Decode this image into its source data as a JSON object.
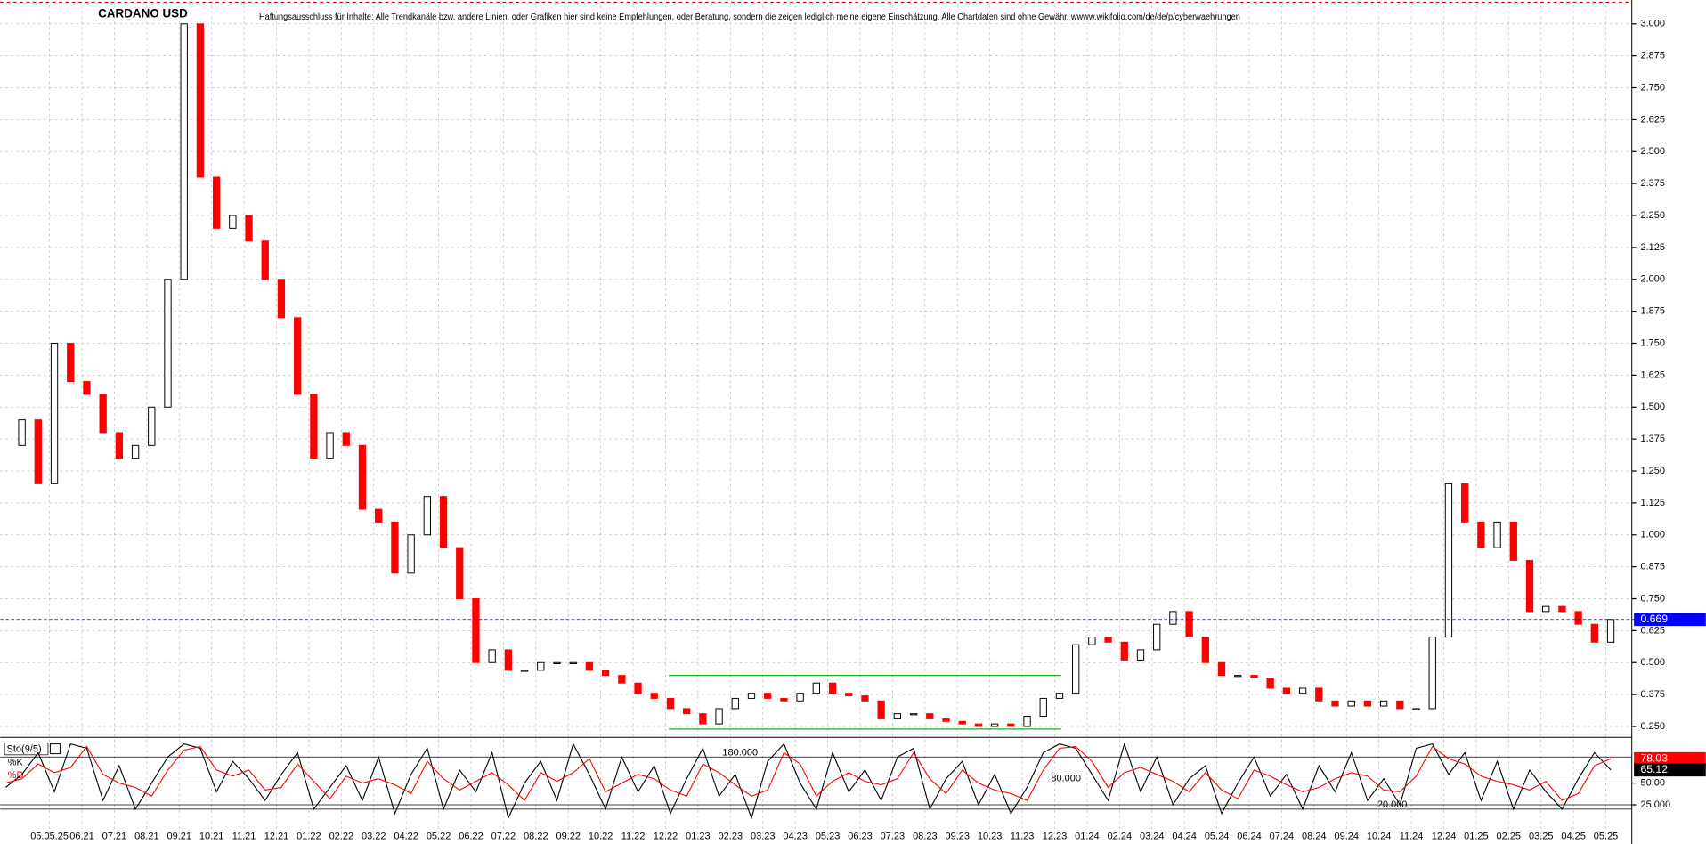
{
  "chart_data": [
    {
      "type": "candlestick",
      "title": "CARDANO USD",
      "subtitle": "Haftungsausschluss für Inhalte: Alle Trendkanäle bzw. andere Linien, oder Grafiken hier sind keine Empfehlungen, oder Beratung, sondern die zeigen lediglich meine eigene Einschätzung. Alle Chartdaten sind ohne Gewähr. wwww.wikifolio.com/de/de/p/cyberwaehrungen",
      "x": [
        -1.35,
        -0.85,
        -0.35,
        0.15,
        0.65,
        1.15,
        1.65,
        2.15,
        2.65,
        3.15,
        3.65,
        4.15,
        4.65,
        5.15,
        5.65,
        6.15,
        6.65,
        7.15,
        7.65,
        8.15,
        8.65,
        9.15,
        9.65,
        10.15,
        10.65,
        11.15,
        11.65,
        12.15,
        12.65,
        13.15,
        13.65,
        14.15,
        14.65,
        15.15,
        15.65,
        16.15,
        16.65,
        17.15,
        17.65,
        18.15,
        18.65,
        19.15,
        19.65,
        20.15,
        20.65,
        21.15,
        21.65,
        22.15,
        22.65,
        23.15,
        23.65,
        24.15,
        24.65,
        25.15,
        25.65,
        26.15,
        26.65,
        27.15,
        27.65,
        28.15,
        28.65,
        29.15,
        29.65,
        30.15,
        30.65,
        31.15,
        31.65,
        32.15,
        32.65,
        33.15,
        33.65,
        34.15,
        34.65,
        35.15,
        35.65,
        36.15,
        36.65,
        37.15,
        37.65,
        38.15,
        38.65,
        39.15,
        39.65,
        40.15,
        40.65,
        41.15,
        41.65,
        42.15,
        42.65,
        43.15,
        43.65,
        44.15,
        44.65,
        45.15,
        45.65,
        46.15,
        46.65,
        47.15,
        47.65,
        48.15
      ],
      "series": [
        {
          "up_color": "#000000",
          "color": "#ff0000",
          "values": [
            1.35,
            1.45,
            1.2,
            1.75,
            1.6,
            1.55,
            1.4,
            1.3,
            1.35,
            1.5,
            2.0,
            3.0,
            2.4,
            2.2,
            2.25,
            2.15,
            2.0,
            1.85,
            1.55,
            1.3,
            1.4,
            1.35,
            1.1,
            1.05,
            0.85,
            1.0,
            1.15,
            0.95,
            0.75,
            0.5,
            0.55,
            0.47,
            0.47,
            0.5,
            0.5,
            0.5,
            0.47,
            0.45,
            0.42,
            0.38,
            0.36,
            0.32,
            0.3,
            0.26,
            0.32,
            0.36,
            0.38,
            0.36,
            0.35,
            0.38,
            0.42,
            0.38,
            0.37,
            0.35,
            0.28,
            0.3,
            0.3,
            0.28,
            0.27,
            0.26,
            0.25,
            0.26,
            0.25,
            0.29,
            0.36,
            0.38,
            0.57,
            0.6,
            0.58,
            0.51,
            0.55,
            0.65,
            0.7,
            0.6,
            0.5,
            0.45,
            0.45,
            0.44,
            0.4,
            0.38,
            0.4,
            0.35,
            0.33,
            0.35,
            0.33,
            0.35,
            0.32,
            0.32,
            0.6,
            1.2,
            1.05,
            0.95,
            1.05,
            0.9,
            0.7,
            0.72,
            0.7,
            0.65,
            0.58,
            0.669
          ]
        }
      ],
      "trendlines": [
        {
          "x": [
            19.1,
            31.2
          ],
          "y": [
            0.45,
            0.45
          ]
        },
        {
          "x": [
            19.1,
            31.2
          ],
          "y": [
            0.24,
            0.24
          ]
        }
      ],
      "trend_color": "#22aa22",
      "xlim": [
        -1.52,
        48.8
      ],
      "ylim": [
        0.22,
        3.072
      ],
      "xticks": [
        {
          "value": 0,
          "label": "05.05.25"
        },
        {
          "value": 1,
          "label": "06.21"
        },
        {
          "value": 2,
          "label": "07.21"
        },
        {
          "value": 3,
          "label": "08.21"
        },
        {
          "value": 4,
          "label": "09.21"
        },
        {
          "value": 5,
          "label": "10.21"
        },
        {
          "value": 6,
          "label": "11.21"
        },
        {
          "value": 7,
          "label": "12.21"
        },
        {
          "value": 8,
          "label": "01.22"
        },
        {
          "value": 9,
          "label": "02.22"
        },
        {
          "value": 10,
          "label": "03.22"
        },
        {
          "value": 11,
          "label": "04.22"
        },
        {
          "value": 12,
          "label": "05.22"
        },
        {
          "value": 13,
          "label": "06.22"
        },
        {
          "value": 14,
          "label": "07.22"
        },
        {
          "value": 15,
          "label": "08.22"
        },
        {
          "value": 16,
          "label": "09.22"
        },
        {
          "value": 17,
          "label": "10.22"
        },
        {
          "value": 18,
          "label": "11.22"
        },
        {
          "value": 19,
          "label": "12.22"
        },
        {
          "value": 20,
          "label": "01.23"
        },
        {
          "value": 21,
          "label": "02.23"
        },
        {
          "value": 22,
          "label": "03.23"
        },
        {
          "value": 23,
          "label": "04.23"
        },
        {
          "value": 24,
          "label": "05.23"
        },
        {
          "value": 25,
          "label": "06.23"
        },
        {
          "value": 26,
          "label": "07.23"
        },
        {
          "value": 27,
          "label": "08.23"
        },
        {
          "value": 28,
          "label": "09.23"
        },
        {
          "value": 29,
          "label": "10.23"
        },
        {
          "value": 30,
          "label": "11.23"
        },
        {
          "value": 31,
          "label": "12.23"
        },
        {
          "value": 32,
          "label": "01.24"
        },
        {
          "value": 33,
          "label": "02.24"
        },
        {
          "value": 34,
          "label": "03.24"
        },
        {
          "value": 35,
          "label": "04.24"
        },
        {
          "value": 36,
          "label": "05.24"
        },
        {
          "value": 37,
          "label": "06.24"
        },
        {
          "value": 38,
          "label": "07.24"
        },
        {
          "value": 39,
          "label": "08.24"
        },
        {
          "value": 40,
          "label": "09.24"
        },
        {
          "value": 41,
          "label": "10.24"
        },
        {
          "value": 42,
          "label": "11.24"
        },
        {
          "value": 43,
          "label": "12.24"
        },
        {
          "value": 44,
          "label": "01.25"
        },
        {
          "value": 45,
          "label": "02.25"
        },
        {
          "value": 46,
          "label": "03.25"
        },
        {
          "value": 47,
          "label": "04.25"
        },
        {
          "value": 48,
          "label": "05.25"
        }
      ],
      "yticks": [
        {
          "value": 0.25,
          "label": "0.250"
        },
        {
          "value": 0.375,
          "label": "0.375"
        },
        {
          "value": 0.5,
          "label": "0.500"
        },
        {
          "value": 0.625,
          "label": "0.625"
        },
        {
          "value": 0.75,
          "label": "0.750"
        },
        {
          "value": 0.875,
          "label": "0.875"
        },
        {
          "value": 1.0,
          "label": "1.000"
        },
        {
          "value": 1.125,
          "label": "1.125"
        },
        {
          "value": 1.25,
          "label": "1.250"
        },
        {
          "value": 1.375,
          "label": "1.375"
        },
        {
          "value": 1.5,
          "label": "1.500"
        },
        {
          "value": 1.625,
          "label": "1.625"
        },
        {
          "value": 1.75,
          "label": "1.750"
        },
        {
          "value": 1.875,
          "label": "1.875"
        },
        {
          "value": 2.0,
          "label": "2.000"
        },
        {
          "value": 2.125,
          "label": "2.125"
        },
        {
          "value": 2.25,
          "label": "2.250"
        },
        {
          "value": 2.375,
          "label": "2.375"
        },
        {
          "value": 2.5,
          "label": "2.500"
        },
        {
          "value": 2.625,
          "label": "2.625"
        },
        {
          "value": 2.75,
          "label": "2.750"
        },
        {
          "value": 2.875,
          "label": "2.875"
        },
        {
          "value": 3.0,
          "label": "3.000"
        }
      ],
      "grid": true
    },
    {
      "type": "line",
      "title": "Sto(9/5)",
      "x": [
        -1.35,
        -0.85,
        -0.35,
        0.15,
        0.65,
        1.15,
        1.65,
        2.15,
        2.65,
        3.15,
        3.65,
        4.15,
        4.65,
        5.15,
        5.65,
        6.15,
        6.65,
        7.15,
        7.65,
        8.15,
        8.65,
        9.15,
        9.65,
        10.15,
        10.65,
        11.15,
        11.65,
        12.15,
        12.65,
        13.15,
        13.65,
        14.15,
        14.65,
        15.15,
        15.65,
        16.15,
        16.65,
        17.15,
        17.65,
        18.15,
        18.65,
        19.15,
        19.65,
        20.15,
        20.65,
        21.15,
        21.65,
        22.15,
        22.65,
        23.15,
        23.65,
        24.15,
        24.65,
        25.15,
        25.65,
        26.15,
        26.65,
        27.15,
        27.65,
        28.15,
        28.65,
        29.15,
        29.65,
        30.15,
        30.65,
        31.15,
        31.65,
        32.15,
        32.65,
        33.15,
        33.65,
        34.15,
        34.65,
        35.15,
        35.65,
        36.15,
        36.65,
        37.15,
        37.65,
        38.15,
        38.65,
        39.15,
        39.65,
        40.15,
        40.65,
        41.15,
        41.65,
        42.15,
        42.65,
        43.15,
        43.65,
        44.15,
        44.65,
        45.15,
        45.65,
        46.15,
        46.65,
        47.15,
        47.65,
        48.15
      ],
      "series": [
        {
          "name": "%K",
          "color": "#000000",
          "values": [
            45,
            60,
            85,
            40,
            95,
            90,
            30,
            70,
            20,
            50,
            80,
            95,
            90,
            40,
            75,
            55,
            30,
            60,
            85,
            20,
            45,
            70,
            30,
            80,
            15,
            60,
            90,
            20,
            65,
            40,
            85,
            10,
            50,
            75,
            30,
            95,
            60,
            20,
            80,
            40,
            70,
            15,
            55,
            90,
            35,
            60,
            10,
            75,
            95,
            50,
            20,
            85,
            40,
            65,
            30,
            80,
            90,
            20,
            55,
            75,
            25,
            60,
            15,
            45,
            85,
            95,
            90,
            60,
            30,
            95,
            40,
            80,
            25,
            55,
            70,
            15,
            50,
            80,
            35,
            60,
            20,
            70,
            40,
            85,
            30,
            55,
            25,
            90,
            95,
            60,
            85,
            30,
            75,
            20,
            65,
            40,
            20,
            55,
            85,
            65.12
          ]
        },
        {
          "name": "%D",
          "color": "#ff0000",
          "values": [
            50,
            55,
            72,
            62,
            68,
            92,
            60,
            50,
            45,
            35,
            65,
            88,
            92,
            65,
            58,
            65,
            42,
            45,
            72,
            52,
            32,
            58,
            50,
            55,
            48,
            38,
            75,
            55,
            42,
            52,
            62,
            48,
            30,
            62,
            52,
            62,
            78,
            40,
            50,
            60,
            55,
            42,
            35,
            72,
            62,
            48,
            35,
            42,
            85,
            72,
            35,
            52,
            62,
            52,
            48,
            55,
            85,
            55,
            38,
            65,
            50,
            42,
            38,
            30,
            65,
            90,
            92,
            75,
            45,
            62,
            68,
            60,
            52,
            40,
            62,
            42,
            32,
            65,
            58,
            48,
            40,
            45,
            55,
            62,
            58,
            42,
            40,
            58,
            92,
            78,
            72,
            58,
            52,
            48,
            42,
            52,
            30,
            38,
            70,
            78.03
          ]
        }
      ],
      "levels": [
        80,
        20
      ],
      "annotations": [
        "180.000",
        "80.000",
        "20.000"
      ],
      "xlim": [
        -1.52,
        48.8
      ],
      "ylim": [
        -15,
        100
      ],
      "yticks": [
        {
          "value": 25,
          "label": "25.000"
        },
        {
          "value": 50,
          "label": "50.00"
        }
      ]
    }
  ]
}
